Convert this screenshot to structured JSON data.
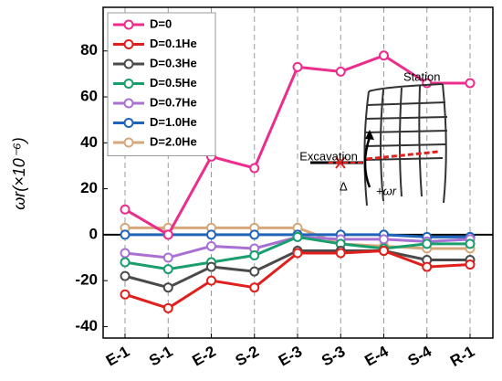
{
  "chart_data": {
    "type": "line",
    "y_label": "ωr(×10⁻⁶)",
    "categories": [
      "E-1",
      "S-1",
      "E-2",
      "S-2",
      "E-3",
      "S-3",
      "E-4",
      "S-4",
      "R-1"
    ],
    "series": [
      {
        "name": "D=0",
        "color": "#ec2d8c",
        "values": [
          11,
          0,
          34,
          29,
          73,
          71,
          78,
          66,
          66
        ]
      },
      {
        "name": "D=0.1He",
        "color": "#e0201c",
        "values": [
          -26,
          -32,
          -20,
          -23,
          -8,
          -8,
          -7,
          -14,
          -13
        ]
      },
      {
        "name": "D=0.3He",
        "color": "#4a4a4a",
        "values": [
          -18,
          -23,
          -14,
          -16,
          -7,
          -7,
          -7,
          -11,
          -11
        ]
      },
      {
        "name": "D=0.5He",
        "color": "#1a9e6e",
        "values": [
          -12,
          -15,
          -12,
          -9,
          -1,
          -4,
          -6,
          -4,
          -4
        ]
      },
      {
        "name": "D=0.7He",
        "color": "#a970d4",
        "values": [
          -8,
          -10,
          -5,
          -6,
          -1,
          -2,
          -2,
          -3,
          -2
        ]
      },
      {
        "name": "D=1.0He",
        "color": "#1f64b8",
        "values": [
          0,
          0,
          0,
          0,
          0,
          0,
          0,
          -1,
          -1
        ]
      },
      {
        "name": "D=2.0He",
        "color": "#d6a77a",
        "values": [
          3,
          3,
          3,
          3,
          3,
          -4,
          -5,
          -6,
          -6
        ]
      }
    ],
    "ylim": [
      -45,
      99
    ],
    "yticks": [
      -40,
      -20,
      0,
      20,
      40,
      60,
      80
    ],
    "grid": true,
    "legend": "upper left",
    "annotations": [
      "Station",
      "Excavation",
      "Δ",
      "+ωr"
    ]
  }
}
